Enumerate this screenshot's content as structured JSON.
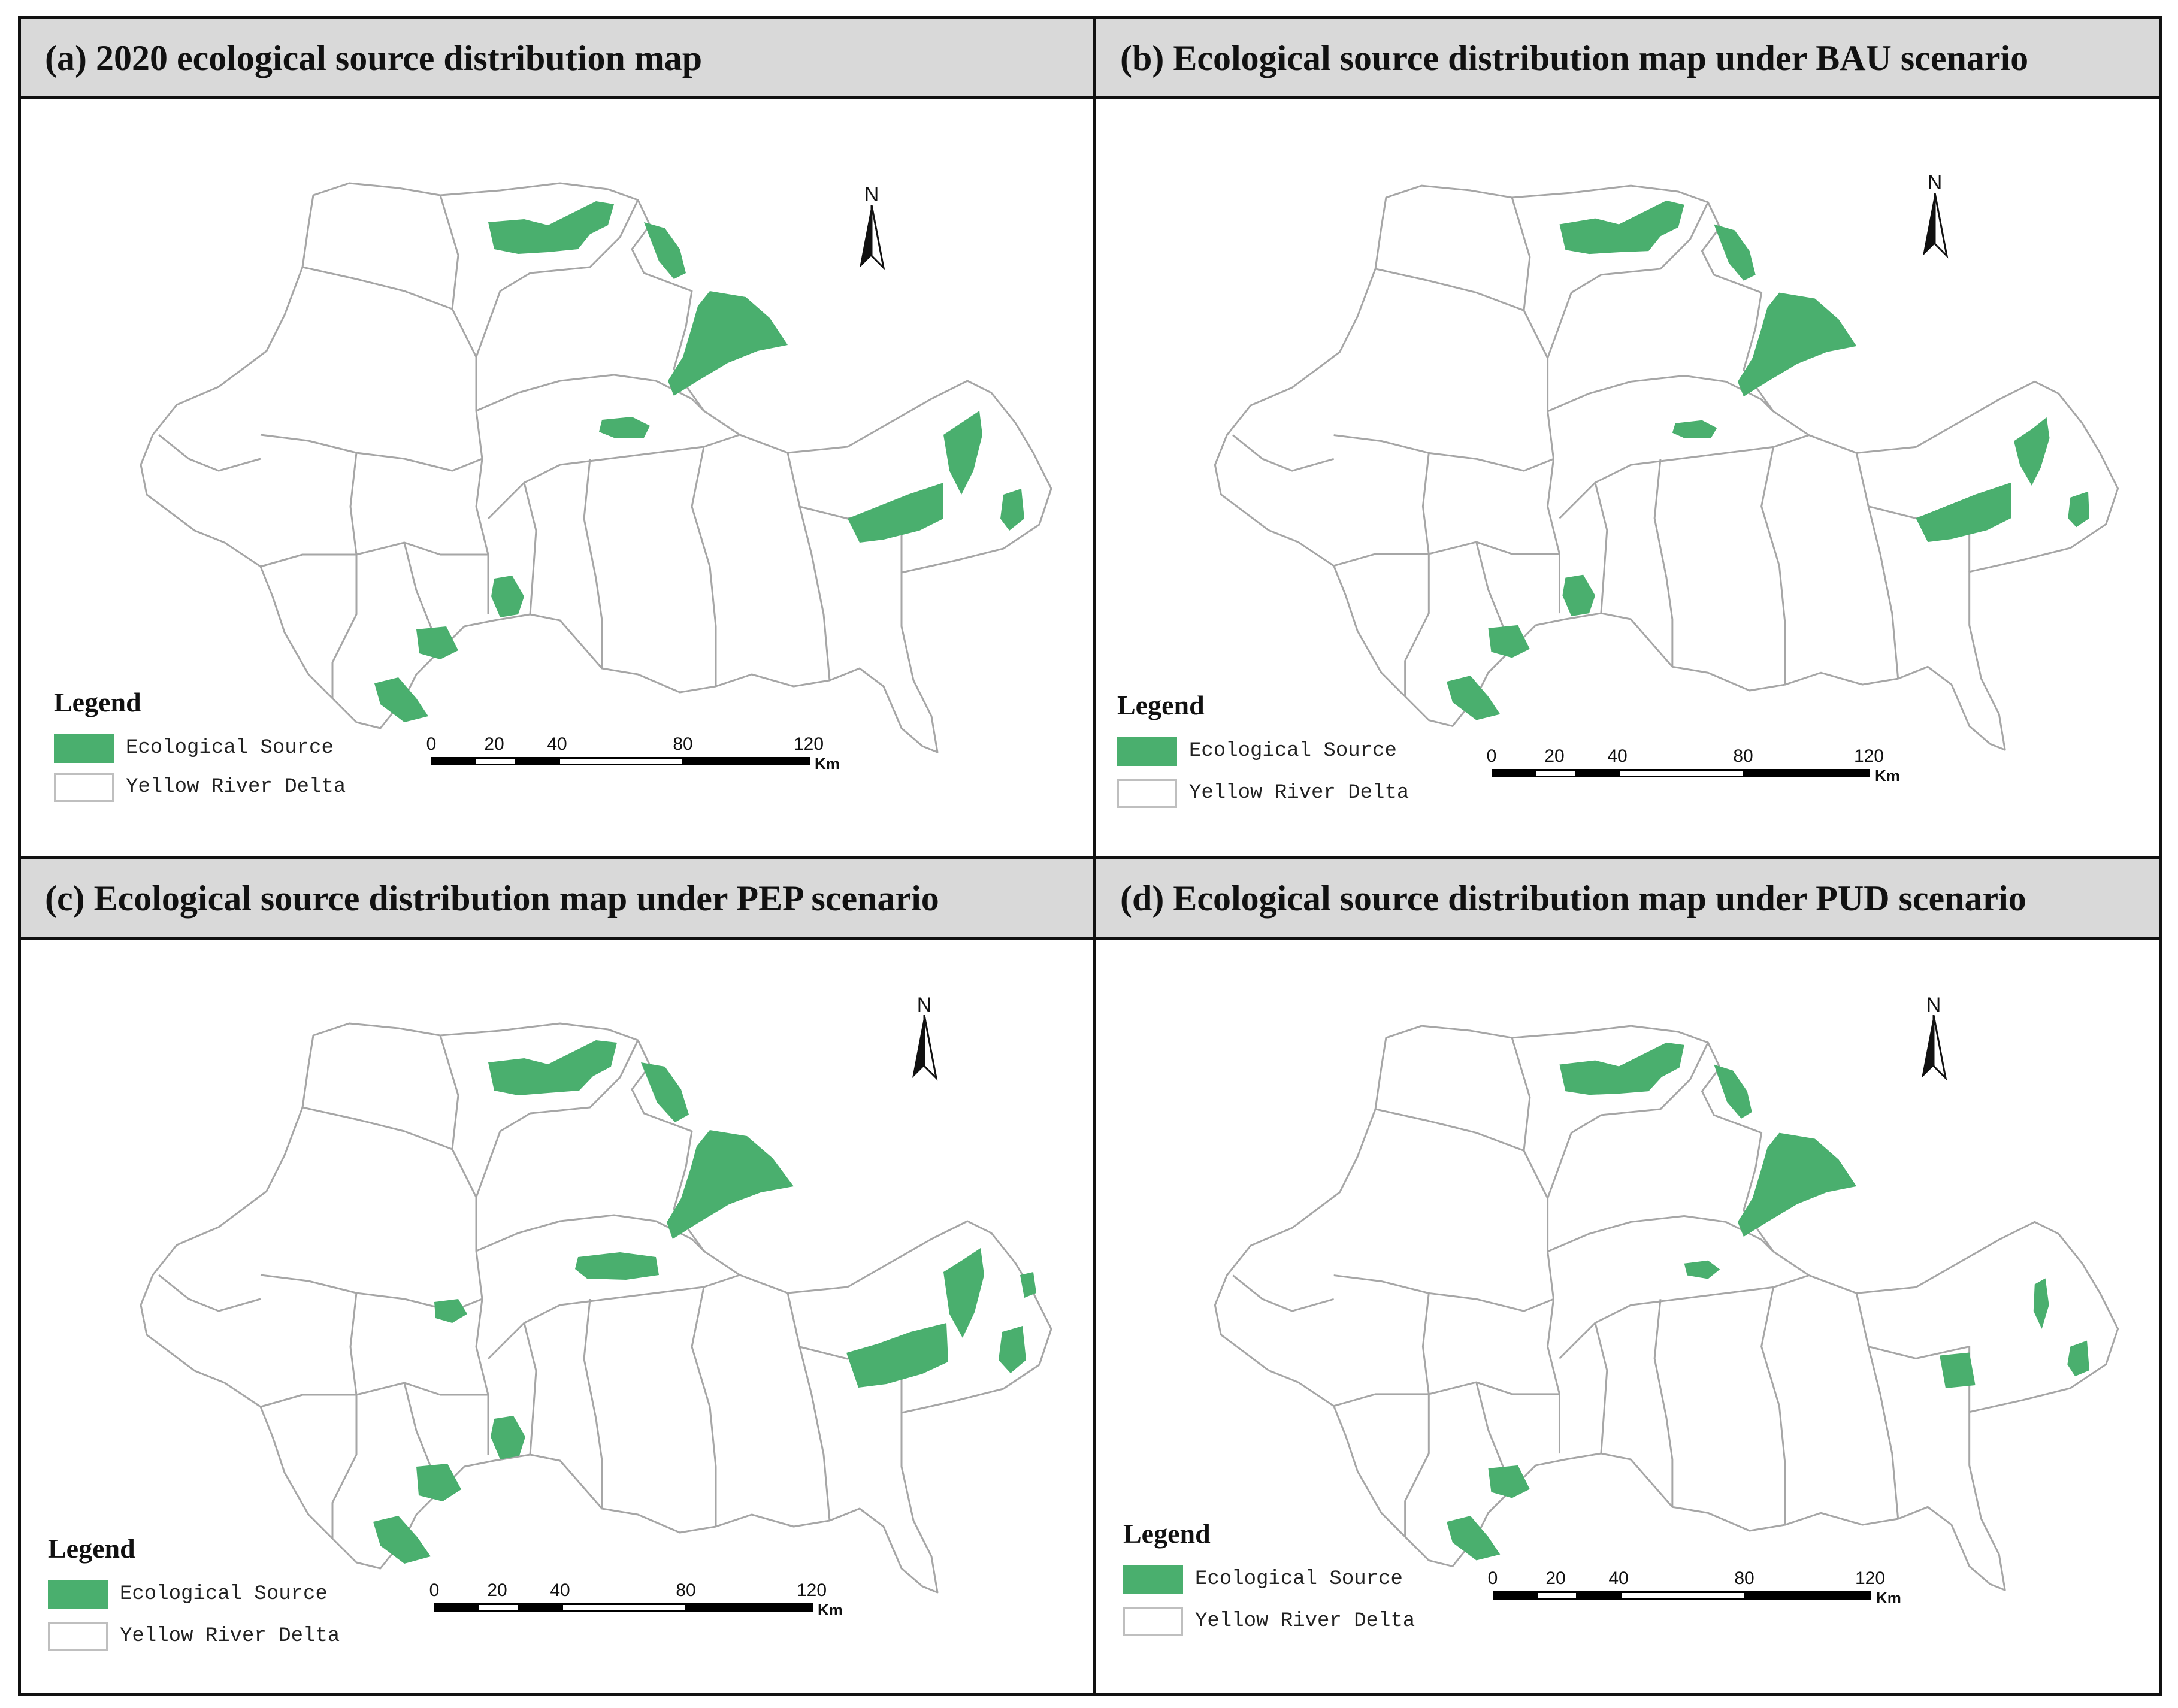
{
  "panels": [
    {
      "title": "(a) 2020 ecological source distribution map"
    },
    {
      "title": "(b) Ecological  source distribution map  under BAU scenario"
    },
    {
      "title": "(c) Ecological  source distribution map  under PEP scenario"
    },
    {
      "title": "(d) Ecological  source distribution map  under PUD scenario"
    }
  ],
  "legend": {
    "title": "Legend",
    "items": [
      {
        "label": "Ecological Source",
        "color": "#4aaf6e"
      },
      {
        "label": "Yellow River Delta",
        "color": "#ffffff"
      }
    ]
  },
  "scale": {
    "ticks": [
      "0",
      "20",
      "40",
      "80",
      "120"
    ],
    "unit": "Km"
  },
  "north_arrow": "N",
  "colors": {
    "source": "#4aaf6e",
    "boundary": "#a6a6a6",
    "border": "#111111",
    "header": "#d9d9d9"
  }
}
